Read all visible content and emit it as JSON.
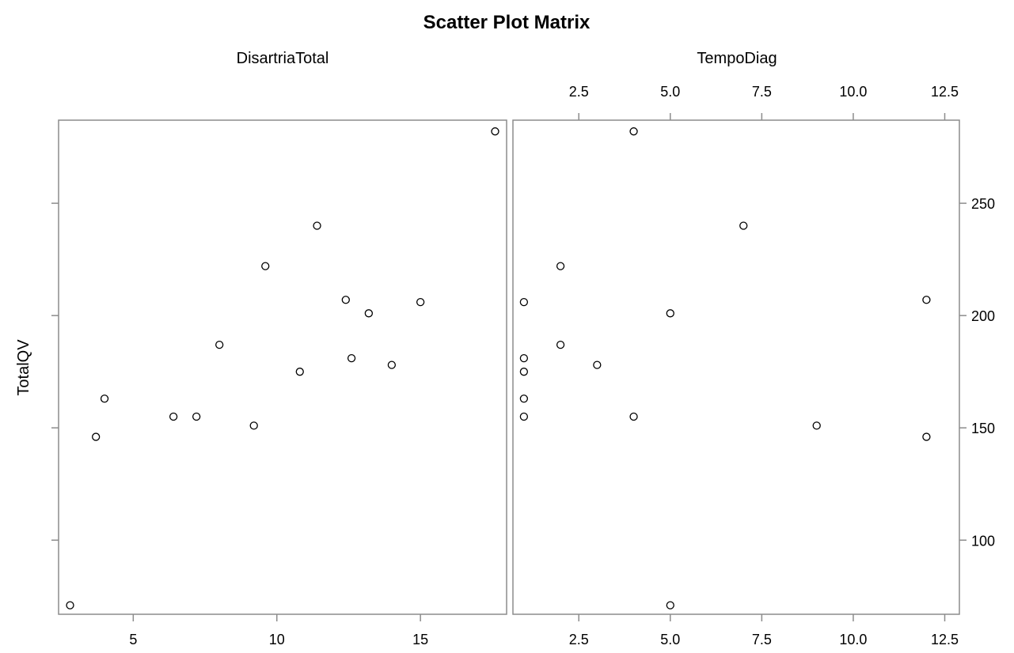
{
  "chart_data": {
    "type": "scatter",
    "title": "Scatter Plot Matrix",
    "y_variable": "TotalQV",
    "colors": {
      "frame": "#8c8c8c",
      "marker": "#000000",
      "background": "#ffffff"
    },
    "grid": false,
    "panels": [
      {
        "xlabel": "DisartriaTotal",
        "ylabel": "TotalQV",
        "xlim": [
          2.4,
          18.0
        ],
        "ylim": [
          67,
          287
        ],
        "xticks": [
          5,
          10,
          15
        ],
        "xticklabels": [
          "5",
          "10",
          "15"
        ],
        "yticks": [
          100,
          150,
          200,
          250
        ],
        "points": [
          {
            "x": 2.8,
            "y": 71
          },
          {
            "x": 3.7,
            "y": 146
          },
          {
            "x": 4.0,
            "y": 163
          },
          {
            "x": 6.4,
            "y": 155
          },
          {
            "x": 7.2,
            "y": 155
          },
          {
            "x": 8.0,
            "y": 187
          },
          {
            "x": 9.2,
            "y": 151
          },
          {
            "x": 9.6,
            "y": 222
          },
          {
            "x": 10.8,
            "y": 175
          },
          {
            "x": 11.4,
            "y": 240
          },
          {
            "x": 12.4,
            "y": 207
          },
          {
            "x": 12.6,
            "y": 181
          },
          {
            "x": 13.2,
            "y": 201
          },
          {
            "x": 14.0,
            "y": 178
          },
          {
            "x": 15.0,
            "y": 206
          },
          {
            "x": 17.6,
            "y": 282
          }
        ]
      },
      {
        "xlabel": "TempoDiag",
        "ylabel": "TotalQV",
        "xlim": [
          0.7,
          12.9
        ],
        "ylim": [
          67,
          287
        ],
        "xticks": [
          2.5,
          5.0,
          7.5,
          10.0,
          12.5
        ],
        "xticklabels": [
          "2.5",
          "5.0",
          "7.5",
          "10.0",
          "12.5"
        ],
        "yticks": [
          100,
          150,
          200,
          250
        ],
        "yticklabels": [
          "100",
          "150",
          "200",
          "250"
        ],
        "points": [
          {
            "x": 4,
            "y": 282
          },
          {
            "x": 7,
            "y": 240
          },
          {
            "x": 2,
            "y": 222
          },
          {
            "x": 1,
            "y": 206
          },
          {
            "x": 5,
            "y": 201
          },
          {
            "x": 12,
            "y": 207
          },
          {
            "x": 2,
            "y": 187
          },
          {
            "x": 1,
            "y": 181
          },
          {
            "x": 3,
            "y": 178
          },
          {
            "x": 1,
            "y": 175
          },
          {
            "x": 1,
            "y": 163
          },
          {
            "x": 1,
            "y": 155
          },
          {
            "x": 4,
            "y": 155
          },
          {
            "x": 9,
            "y": 151
          },
          {
            "x": 12,
            "y": 146
          },
          {
            "x": 5,
            "y": 71
          }
        ]
      }
    ]
  }
}
